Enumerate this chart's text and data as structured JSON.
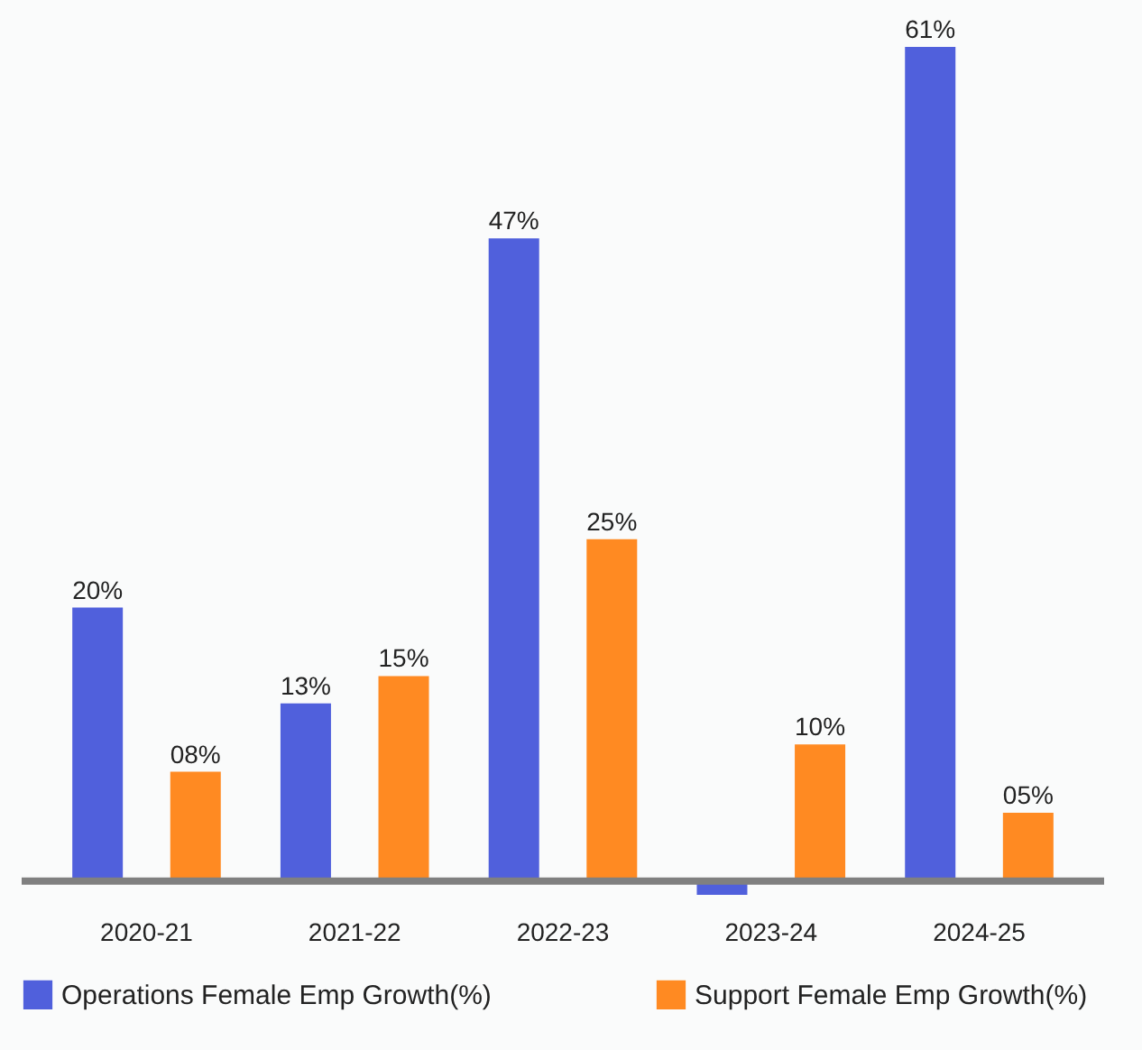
{
  "chart_data": {
    "type": "bar",
    "categories": [
      "2020-21",
      "2021-22",
      "2022-23",
      "2023-24",
      "2024-25"
    ],
    "series": [
      {
        "name": "Operations Female Emp Growth(%)",
        "color": "#5060dc",
        "values": [
          20,
          13,
          47,
          -1,
          61
        ],
        "value_labels": [
          "20%",
          "13%",
          "47%",
          null,
          "61%"
        ]
      },
      {
        "name": "Support Female Emp Growth(%)",
        "color": "#ff8a22",
        "values": [
          8,
          15,
          25,
          10,
          5
        ],
        "value_labels": [
          "08%",
          "15%",
          "25%",
          "10%",
          "05%"
        ]
      }
    ],
    "tick_labels": "x",
    "grid": false,
    "legend": "bottom"
  }
}
